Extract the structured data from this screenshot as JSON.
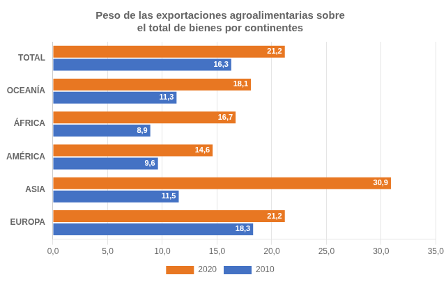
{
  "chart_data": {
    "type": "bar",
    "orientation": "horizontal",
    "title": "Peso de las exportaciones agroalimentarias sobre\nel total de bienes por continentes",
    "categories": [
      "EUROPA",
      "ASIA",
      "AMÉRICA",
      "ÁFRICA",
      "OCEANÍA",
      "TOTAL"
    ],
    "series": [
      {
        "name": "2020",
        "color": "#E87722",
        "values": [
          21.2,
          30.9,
          14.6,
          16.7,
          18.1,
          21.2
        ],
        "value_labels": [
          "21,2",
          "30,9",
          "14,6",
          "16,7",
          "18,1",
          "21,2"
        ]
      },
      {
        "name": "2010",
        "color": "#4472C4",
        "values": [
          18.3,
          11.5,
          9.6,
          8.9,
          11.3,
          16.3
        ],
        "value_labels": [
          "18,3",
          "11,5",
          "9,6",
          "8,9",
          "11,3",
          "16,3"
        ]
      }
    ],
    "xlim": [
      0,
      35
    ],
    "xticks": [
      {
        "value": 0,
        "label": "0,0"
      },
      {
        "value": 5,
        "label": "5,0"
      },
      {
        "value": 10,
        "label": "10,0"
      },
      {
        "value": 15,
        "label": "15,0"
      },
      {
        "value": 20,
        "label": "20,0"
      },
      {
        "value": 25,
        "label": "25,0"
      },
      {
        "value": 30,
        "label": "30,0"
      },
      {
        "value": 35,
        "label": "35,0"
      }
    ],
    "grid": true,
    "legend": "bottom",
    "data_labels": true
  }
}
